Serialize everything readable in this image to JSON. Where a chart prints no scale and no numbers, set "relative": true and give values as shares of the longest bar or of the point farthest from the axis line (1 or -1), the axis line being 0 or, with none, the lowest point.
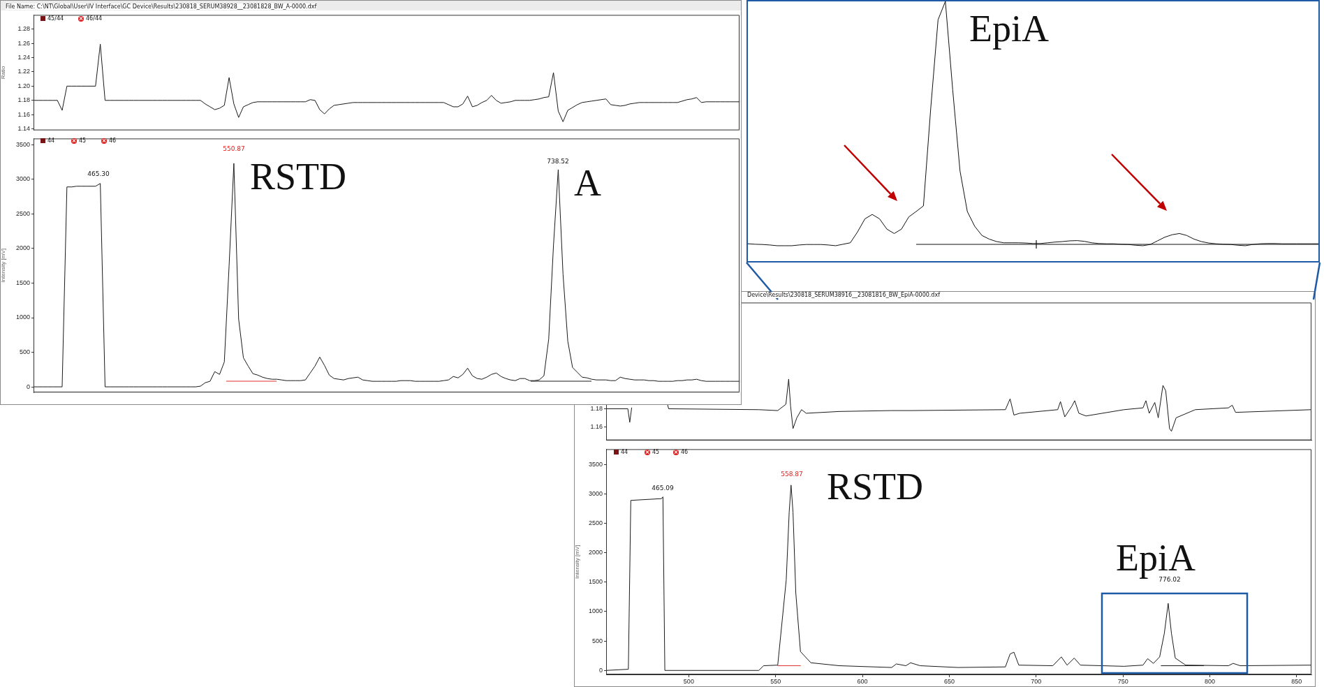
{
  "chart_data": [
    {
      "type": "line",
      "ylabel": "Ratio",
      "ylim": [
        1.138,
        1.3
      ],
      "tick_labels": "y",
      "categories": [
        null,
        null,
        null,
        null,
        null,
        null,
        null,
        null,
        null,
        null,
        null,
        null,
        null,
        null,
        null,
        null,
        null,
        null,
        null,
        null,
        null,
        null,
        null,
        null,
        null,
        null,
        null,
        null,
        null,
        null,
        null,
        null,
        null,
        null,
        null,
        null,
        null,
        null,
        null,
        null,
        null,
        null,
        null,
        null,
        null,
        null,
        null,
        null,
        null,
        null,
        null,
        null,
        null,
        null,
        null,
        null,
        null,
        null,
        null,
        null,
        null,
        null,
        null,
        null,
        null,
        null,
        null,
        null,
        null,
        null,
        null,
        null,
        null,
        null,
        null,
        null,
        null,
        null,
        null,
        null,
        null,
        null,
        null,
        null,
        null,
        null,
        null,
        null,
        null,
        null,
        null,
        null,
        null,
        null,
        null,
        null,
        null,
        null,
        null,
        null,
        null,
        null,
        null,
        null,
        null,
        null,
        null,
        null,
        null,
        null,
        null,
        null,
        null,
        null,
        null,
        null,
        null,
        null,
        null,
        null,
        null,
        null,
        null,
        null,
        null,
        null,
        null,
        null,
        null,
        null,
        null,
        null,
        null,
        null,
        null,
        null,
        null,
        null,
        null,
        null,
        null,
        null,
        null,
        null,
        null,
        null,
        null,
        null,
        null
      ],
      "yticks": [
        {
          "value": 1.14,
          "label": "1.14"
        },
        {
          "value": 1.16,
          "label": "1.16"
        },
        {
          "value": 1.18,
          "label": "1.18"
        },
        {
          "value": 1.2,
          "label": "1.20"
        },
        {
          "value": 1.22,
          "label": "1.22"
        },
        {
          "value": 1.24,
          "label": "1.24"
        },
        {
          "value": 1.26,
          "label": "1.26"
        },
        {
          "value": 1.28,
          "label": "1.28"
        }
      ],
      "annotations": [
        "File Name: C:\\NT\\Global\\User\\IV Interface\\GC Device\\Results\\230818_SERUM38928__23081828_BW_A-0000.dxf",
        "45/44",
        "46/44"
      ],
      "series": [
        {
          "color": "#1a1a1a",
          "values": [
            1.18,
            1.18,
            1.18,
            1.18,
            1.18,
            1.18,
            1.166,
            1.2,
            1.2,
            1.2,
            1.2,
            1.2,
            1.2,
            1.2,
            1.259,
            1.18,
            1.18,
            1.18,
            1.18,
            1.18,
            1.18,
            1.18,
            1.18,
            1.18,
            1.18,
            1.18,
            1.18,
            1.18,
            1.18,
            1.18,
            1.18,
            1.18,
            1.18,
            1.18,
            1.18,
            1.18,
            1.175,
            1.171,
            1.167,
            1.169,
            1.173,
            1.212,
            1.175,
            1.156,
            1.171,
            1.174,
            1.177,
            1.178,
            1.178,
            1.178,
            1.178,
            1.178,
            1.178,
            1.178,
            1.178,
            1.178,
            1.178,
            1.178,
            1.181,
            1.18,
            1.167,
            1.161,
            1.168,
            1.173,
            1.174,
            1.175,
            1.176,
            1.177,
            1.177,
            1.177,
            1.177,
            1.177,
            1.177,
            1.177,
            1.177,
            1.177,
            1.177,
            1.177,
            1.177,
            1.177,
            1.177,
            1.177,
            1.177,
            1.177,
            1.177,
            1.177,
            1.177,
            1.174,
            1.171,
            1.171,
            1.175,
            1.186,
            1.171,
            1.173,
            1.177,
            1.18,
            1.187,
            1.18,
            1.176,
            1.177,
            1.178,
            1.18,
            1.18,
            1.18,
            1.18,
            1.181,
            1.182,
            1.184,
            1.185,
            1.219,
            1.165,
            1.15,
            1.166,
            1.17,
            1.174,
            1.177,
            1.178,
            1.179,
            1.18,
            1.181,
            1.182,
            1.174,
            1.173,
            1.172,
            1.173,
            1.175,
            1.176,
            1.177,
            1.177,
            1.177,
            1.177,
            1.177,
            1.177,
            1.177,
            1.177,
            1.177,
            1.179,
            1.181,
            1.182,
            1.184,
            1.177,
            1.178,
            1.178,
            1.178,
            1.178,
            1.178,
            1.178,
            1.178,
            1.178
          ]
        }
      ]
    },
    {
      "type": "line",
      "ylabel": "Intensity [mV]",
      "ylim": [
        -80,
        3590
      ],
      "tick_labels": "y",
      "categories": [
        null,
        null,
        null,
        null,
        null,
        null,
        null,
        null,
        null,
        null,
        null,
        null,
        null,
        null,
        null,
        null,
        null,
        null,
        null,
        null,
        null,
        null,
        null,
        null,
        null,
        null,
        null,
        null,
        null,
        null,
        null,
        null,
        null,
        null,
        null,
        null,
        null,
        null,
        null,
        null,
        null,
        null,
        null,
        null,
        null,
        null,
        null,
        null,
        null,
        null,
        null,
        null,
        null,
        null,
        null,
        null,
        null,
        null,
        null,
        null,
        null,
        null,
        null,
        null,
        null,
        null,
        null,
        null,
        null,
        null,
        null,
        null,
        null,
        null,
        null,
        null,
        null,
        null,
        null,
        null,
        null,
        null,
        null,
        null,
        null,
        null,
        null,
        null,
        null,
        null,
        null,
        null,
        null,
        null,
        null,
        null,
        null,
        null,
        null,
        null,
        null,
        null,
        null,
        null,
        null,
        null,
        null,
        null,
        null,
        null,
        null,
        null,
        null,
        null,
        null,
        null,
        null,
        null,
        null,
        null,
        null,
        null,
        null,
        null,
        null,
        null,
        null,
        null,
        null,
        null,
        null,
        null,
        null,
        null,
        null,
        null,
        null,
        null,
        null,
        null,
        null,
        null,
        null,
        null,
        null,
        null,
        null,
        null,
        null
      ],
      "yticks": [
        0,
        500,
        1000,
        1500,
        2000,
        2500,
        3000,
        3500
      ],
      "annotations": [
        "44",
        "45",
        "46",
        "RSTD",
        "A",
        "465.30",
        "550.87",
        "738.52"
      ],
      "series": [
        {
          "color": "#1a1a1a",
          "values": [
            0,
            0,
            0,
            0,
            0,
            0,
            0,
            2890,
            2890,
            2900,
            2900,
            2900,
            2900,
            2900,
            2940,
            0,
            0,
            0,
            0,
            0,
            0,
            0,
            0,
            0,
            0,
            0,
            0,
            0,
            0,
            0,
            0,
            0,
            0,
            0,
            0,
            10,
            60,
            80,
            220,
            180,
            360,
            1750,
            3230,
            980,
            420,
            300,
            190,
            170,
            140,
            120,
            110,
            110,
            100,
            90,
            90,
            90,
            90,
            100,
            200,
            300,
            430,
            310,
            170,
            120,
            110,
            100,
            120,
            130,
            140,
            100,
            90,
            80,
            80,
            80,
            80,
            80,
            80,
            90,
            90,
            90,
            80,
            80,
            80,
            80,
            80,
            80,
            90,
            100,
            150,
            130,
            180,
            270,
            160,
            120,
            110,
            140,
            180,
            200,
            150,
            120,
            100,
            90,
            120,
            120,
            90,
            90,
            100,
            160,
            690,
            2040,
            3140,
            1630,
            660,
            280,
            210,
            140,
            130,
            110,
            100,
            100,
            100,
            90,
            90,
            140,
            120,
            110,
            100,
            100,
            100,
            90,
            90,
            80,
            80,
            80,
            80,
            90,
            90,
            100,
            100,
            110,
            90,
            80,
            80,
            80,
            80,
            80,
            80,
            80,
            80
          ]
        }
      ]
    },
    {
      "type": "line",
      "relative": true,
      "tick_labels": false,
      "categories": [
        null,
        null,
        null,
        null,
        null,
        null,
        null,
        null,
        null,
        null,
        null,
        null,
        null,
        null,
        null,
        null,
        null,
        null,
        null,
        null,
        null,
        null,
        null,
        null,
        null,
        null,
        null,
        null,
        null,
        null,
        null,
        null,
        null,
        null,
        null,
        null,
        null,
        null,
        null,
        null,
        null,
        null,
        null,
        null,
        null,
        null,
        null,
        null,
        null,
        null,
        null,
        null,
        null,
        null,
        null,
        null,
        null,
        null,
        null,
        null,
        null,
        null,
        null,
        null,
        null,
        null,
        null,
        null,
        null,
        null,
        null,
        null,
        null,
        null,
        null,
        null,
        null,
        null,
        null
      ],
      "annotations": [
        "EpiA"
      ],
      "series": [
        {
          "color": "#111111",
          "values": [
            0.008,
            0.006,
            0.005,
            0.003,
            0,
            0,
            0,
            0.003,
            0.005,
            0.005,
            0.005,
            0.003,
            0,
            0.006,
            0.012,
            0.057,
            0.11,
            0.128,
            0.11,
            0.068,
            0.05,
            0.068,
            0.118,
            0.14,
            0.163,
            0.563,
            0.925,
            1,
            0.638,
            0.306,
            0.14,
            0.08,
            0.042,
            0.027,
            0.017,
            0.012,
            0.012,
            0.012,
            0.011,
            0.009,
            0.009,
            0.012,
            0.015,
            0.017,
            0.02,
            0.021,
            0.018,
            0.012,
            0.009,
            0.008,
            0.008,
            0.006,
            0.005,
            0.002,
            0,
            0.005,
            0.02,
            0.035,
            0.045,
            0.05,
            0.042,
            0.027,
            0.017,
            0.011,
            0.008,
            0.006,
            0.005,
            0.002,
            0,
            0.005,
            0.008,
            0.009,
            0.009,
            0.008,
            0.008,
            0.008,
            0.008,
            0.008,
            0.008
          ]
        }
      ]
    },
    {
      "type": "line",
      "xlim": [
        452.4,
        858.5
      ],
      "ylim": [
        1.145,
        1.298
      ],
      "tick_labels": "y",
      "yticks": [
        {
          "value": 1.16,
          "label": "1.16"
        },
        {
          "value": 1.18,
          "label": "1.18"
        }
      ],
      "annotations": [
        "Device\\Results\\230818_SERUM38916__23081816_BW_EpiA-0000.dxf"
      ],
      "series": [
        {
          "color": "#1a1a1a",
          "x": [
            452.4,
            464.9,
            466.0,
            467.1,
            475,
            487.6,
            488.4,
            540.3,
            551.2,
            555.9,
            557.5,
            558.6,
            560.0,
            562.2,
            564.9,
            567.6,
            586.7,
            616.8,
            627.7,
            682.3,
            685.0,
            687.2,
            690.5,
            712.4,
            714.0,
            716.5,
            720.6,
            722.2,
            724.6,
            728.7,
            750.6,
            761.5,
            763.2,
            765.1,
            768.3,
            770.3,
            773.0,
            774.6,
            776.8,
            777.9,
            780.6,
            791.6,
            810.7,
            812.9,
            814.8,
            858.5
          ],
          "values": [
            1.18,
            1.18,
            1.165,
            1.181,
            null,
            1.186,
            1.18,
            1.179,
            1.178,
            1.185,
            1.213,
            1.183,
            1.158,
            1.17,
            1.179,
            1.175,
            1.177,
            1.178,
            1.178,
            1.179,
            1.191,
            1.173,
            1.175,
            1.179,
            1.188,
            1.171,
            1.183,
            1.189,
            1.175,
            1.172,
            1.179,
            1.181,
            1.189,
            1.175,
            1.187,
            1.17,
            1.206,
            1.2,
            1.158,
            1.155,
            1.17,
            1.179,
            1.181,
            1.184,
            1.176,
            1.179
          ]
        }
      ]
    },
    {
      "type": "line",
      "ylabel": "Intensity [mV]",
      "xlim": [
        452.4,
        858.5
      ],
      "ylim": [
        -68,
        3760
      ],
      "xticks": [
        500,
        550,
        600,
        650,
        700,
        750,
        800,
        850
      ],
      "yticks": [
        0,
        500,
        1000,
        1500,
        2000,
        2500,
        3000,
        3500
      ],
      "annotations": [
        "44",
        "45",
        "46",
        "RSTD",
        "EpiA",
        "465.09",
        "558.87",
        "776.02"
      ],
      "series": [
        {
          "color": "#1a1a1a",
          "x": [
            452.4,
            465.2,
            466.6,
            484.3,
            485.1,
            486.2,
            540.3,
            543.0,
            551.2,
            556.1,
            557.8,
            558.87,
            560.0,
            561.6,
            564.3,
            570.3,
            586.7,
            616.8,
            619.5,
            625.0,
            627.7,
            633.2,
            655.0,
            682.3,
            685.0,
            687.2,
            690.0,
            709.6,
            714.5,
            717.8,
            721.9,
            725.5,
            750.6,
            761.5,
            764.2,
            767.5,
            771.1,
            773.8,
            776.02,
            777.9,
            780.1,
            786.1,
            810.7,
            813.4,
            817.5,
            858.5
          ],
          "values": [
            0,
            20,
            2890,
            2920,
            2950,
            0,
            0,
            80,
            90,
            1540,
            2690,
            3150,
            2690,
            1320,
            320,
            130,
            80,
            50,
            110,
            80,
            130,
            80,
            50,
            60,
            280,
            310,
            90,
            80,
            230,
            90,
            210,
            90,
            70,
            90,
            200,
            120,
            230,
            630,
            1140,
            630,
            210,
            90,
            80,
            120,
            80,
            90
          ]
        },
        {
          "color": "#e03030",
          "x": [
            551.2,
            564.3
          ],
          "values": [
            80,
            80
          ]
        },
        {
          "color": "#1a1a1a",
          "x": [
            771.9,
            796.5
          ],
          "values": [
            80,
            80
          ]
        }
      ]
    }
  ]
}
